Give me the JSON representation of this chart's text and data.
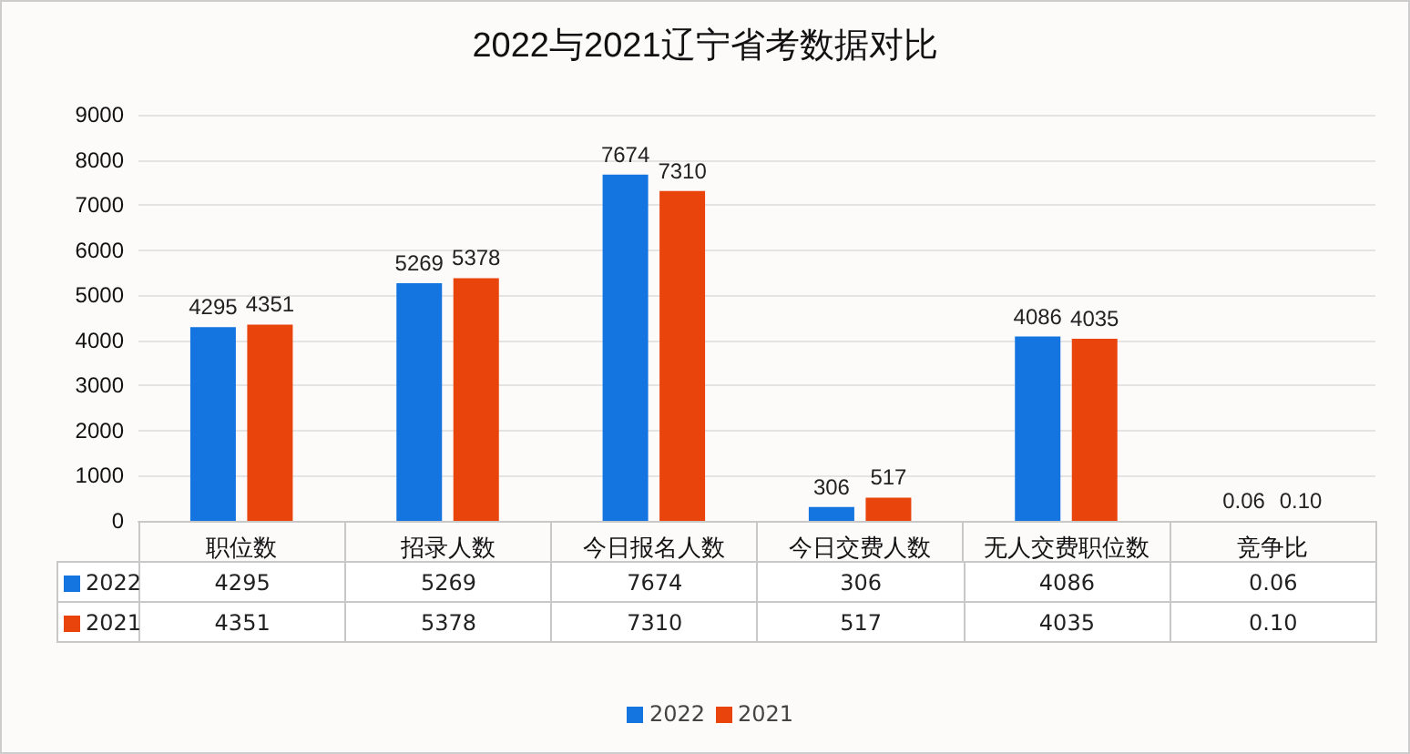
{
  "chart_data": {
    "type": "bar",
    "title": "2022与2021辽宁省考数据对比",
    "categories": [
      "职位数",
      "招录人数",
      "今日报名人数",
      "今日交费人数",
      "无人交费职位数",
      "竞争比"
    ],
    "series": [
      {
        "name": "2022",
        "color": "#1474e0",
        "values": [
          4295,
          5269,
          7674,
          306,
          4086,
          0.06
        ],
        "value_labels": [
          "4295",
          "5269",
          "7674",
          "306",
          "4086",
          "0.06"
        ]
      },
      {
        "name": "2021",
        "color": "#e8440c",
        "values": [
          4351,
          5378,
          7310,
          517,
          4035,
          0.1
        ],
        "value_labels": [
          "4351",
          "5378",
          "7310",
          "517",
          "4035",
          "0.10"
        ]
      }
    ],
    "ylim": [
      0,
      9000
    ],
    "yticks": [
      0,
      1000,
      2000,
      3000,
      4000,
      5000,
      6000,
      7000,
      8000,
      9000
    ],
    "grid": "y",
    "legend": "bottom"
  }
}
